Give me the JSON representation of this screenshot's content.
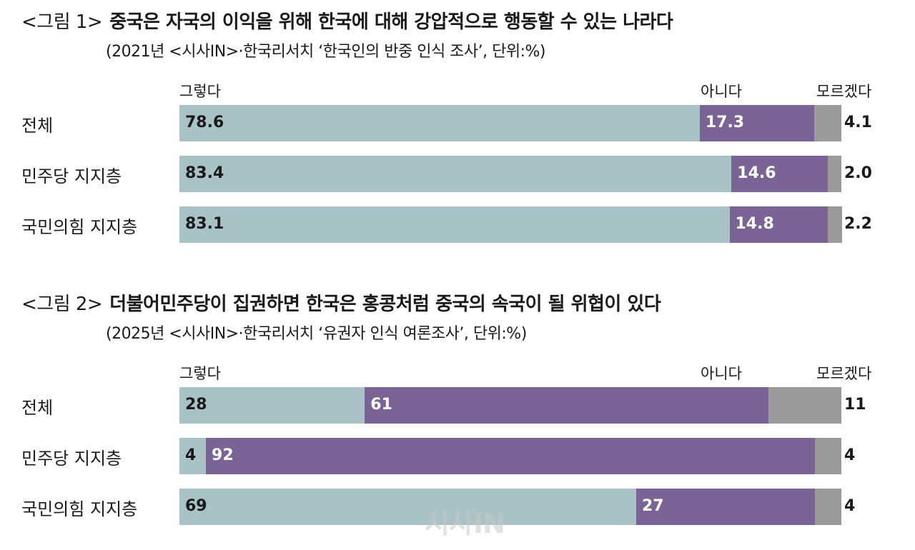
{
  "watermark": "시사IN",
  "chart_data": [
    {
      "type": "bar",
      "stacked": true,
      "orientation": "horizontal",
      "figure_label": "<그림 1>",
      "title": "중국은 자국의 이익을 위해 한국에 대해 강압적으로 행동할 수 있는 나라다",
      "subtitle": "(2021년 <시사IN>·한국리서치 ‘한국인의 반중 인식 조사’, 단위:%)",
      "categories": [
        "전체",
        "민주당 지지층",
        "국민의힘 지지층"
      ],
      "series": [
        {
          "name": "그렇다",
          "values": [
            78.6,
            83.4,
            83.1
          ],
          "labels": [
            "78.6",
            "83.4",
            "83.1"
          ],
          "color": "#a9c2c5"
        },
        {
          "name": "아니다",
          "values": [
            17.3,
            14.6,
            14.8
          ],
          "labels": [
            "17.3",
            "14.6",
            "14.8"
          ],
          "color": "#7a6496"
        },
        {
          "name": "모르겠다",
          "values": [
            4.1,
            2.0,
            2.2
          ],
          "labels": [
            "4.1",
            "2.0",
            "2.2"
          ],
          "color": "#9a9a9a"
        }
      ],
      "xlim": [
        0,
        100
      ]
    },
    {
      "type": "bar",
      "stacked": true,
      "orientation": "horizontal",
      "figure_label": "<그림 2>",
      "title": "더불어민주당이 집권하면 한국은 홍콩처럼 중국의 속국이 될 위협이 있다",
      "subtitle": "(2025년 <시사IN>·한국리서치 ‘유권자 인식 여론조사’, 단위:%)",
      "categories": [
        "전체",
        "민주당 지지층",
        "국민의힘 지지층"
      ],
      "series": [
        {
          "name": "그렇다",
          "values": [
            28,
            4,
            69
          ],
          "labels": [
            "28",
            "4",
            "69"
          ],
          "color": "#a9c2c5"
        },
        {
          "name": "아니다",
          "values": [
            61,
            92,
            27
          ],
          "labels": [
            "61",
            "92",
            "27"
          ],
          "color": "#7a6496"
        },
        {
          "name": "모르겠다",
          "values": [
            11,
            4,
            4
          ],
          "labels": [
            "11",
            "4",
            "4"
          ],
          "color": "#9a9a9a"
        }
      ],
      "xlim": [
        0,
        100
      ]
    }
  ]
}
